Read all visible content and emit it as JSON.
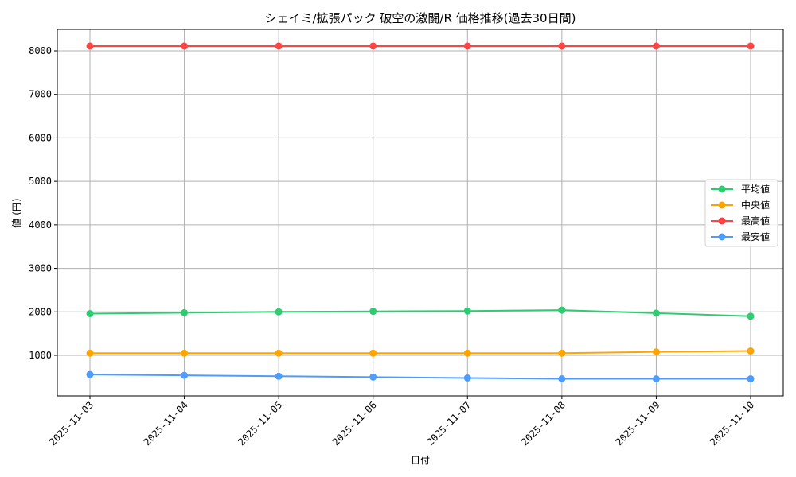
{
  "chart_data": {
    "type": "line",
    "title": "シェイミ/拡張パック 破空の激闘/R 価格推移(過去30日間)",
    "xlabel": "日付",
    "ylabel": "値 (円)",
    "categories": [
      "2025-11-03",
      "2025-11-04",
      "2025-11-05",
      "2025-11-06",
      "2025-11-07",
      "2025-11-08",
      "2025-11-09",
      "2025-11-10"
    ],
    "yticks": [
      1000,
      2000,
      3000,
      4000,
      5000,
      6000,
      7000,
      8000
    ],
    "ylim": [
      130,
      8530
    ],
    "grid": true,
    "legend_position": "center right",
    "series": [
      {
        "name": "平均値",
        "color": "#2ecc71",
        "values": [
          1960,
          1980,
          2000,
          2010,
          2020,
          2040,
          1970,
          1900
        ]
      },
      {
        "name": "中央値",
        "color": "#ffa500",
        "values": [
          1050,
          1050,
          1050,
          1050,
          1050,
          1050,
          1080,
          1100
        ]
      },
      {
        "name": "最高値",
        "color": "#ff4444",
        "values": [
          8110,
          8110,
          8110,
          8110,
          8110,
          8110,
          8110,
          8110
        ]
      },
      {
        "name": "最安値",
        "color": "#4d9cff",
        "values": [
          560,
          540,
          520,
          500,
          480,
          460,
          460,
          460
        ]
      }
    ]
  }
}
